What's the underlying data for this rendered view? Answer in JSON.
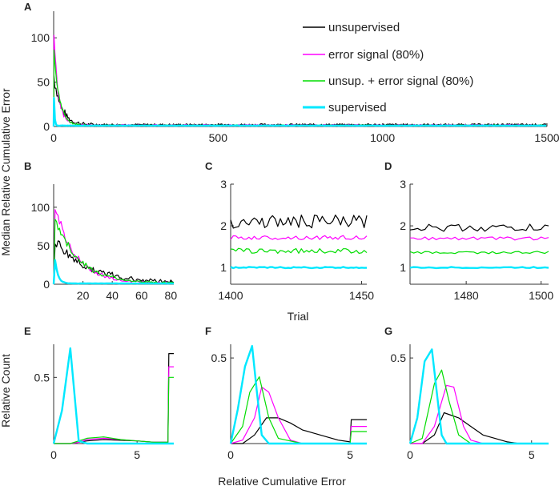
{
  "colors": {
    "unsupervised": "#000000",
    "error": "#ff00ff",
    "combo": "#00dd00",
    "supervised": "#00e8ff"
  },
  "labels": {
    "shared_ylabel": "Median Relative Cumulative Error",
    "trial_label": "Trial",
    "relcount_label": "Relative Count",
    "relcum_label": "Relative Cumulative Error"
  },
  "legend": [
    "unsupervised",
    "error signal (80%)",
    "unsup. + error signal (80%)",
    "supervised"
  ],
  "chart_data": [
    {
      "id": "A",
      "type": "line",
      "xlim": [
        0,
        1500
      ],
      "ylim": [
        0,
        130
      ],
      "xticks": [
        "0",
        "500",
        "1000",
        "1500"
      ],
      "yticks": [
        "0",
        "50",
        "100"
      ],
      "series": [
        {
          "name": "unsupervised",
          "peak": 55,
          "tau": 22,
          "floor": 2,
          "noise": 2.2
        },
        {
          "name": "error signal (80%)",
          "peak": 98,
          "tau": 14,
          "floor": 1.5,
          "noise": 1.5
        },
        {
          "name": "unsup. + error signal (80%)",
          "peak": 85,
          "tau": 16,
          "floor": 1.3,
          "noise": 1.2
        },
        {
          "name": "supervised",
          "peak": 30,
          "tau": 2,
          "floor": 1,
          "noise": 0.3
        }
      ]
    },
    {
      "id": "B",
      "type": "line",
      "xlim": [
        0,
        82
      ],
      "ylim": [
        0,
        130
      ],
      "xticks": [
        "20",
        "40",
        "60",
        "80"
      ],
      "yticks": [
        "0",
        "50",
        "100"
      ],
      "series": [
        {
          "name": "unsupervised",
          "peak": 55,
          "tau": 22,
          "floor": 2,
          "noise": 2.2
        },
        {
          "name": "error signal (80%)",
          "peak": 98,
          "tau": 14,
          "floor": 1.5,
          "noise": 1.5
        },
        {
          "name": "unsup. + error signal (80%)",
          "peak": 85,
          "tau": 16,
          "floor": 1.3,
          "noise": 1.2
        },
        {
          "name": "supervised",
          "peak": 30,
          "tau": 2,
          "floor": 1,
          "noise": 0.3
        }
      ]
    },
    {
      "id": "C",
      "type": "line",
      "xlim": [
        1400,
        1452
      ],
      "ylim": [
        0.6,
        3.0
      ],
      "xticks": [
        "1400",
        "1450"
      ],
      "yticks": [
        "1",
        "2",
        "3"
      ],
      "series": [
        {
          "name": "unsupervised",
          "level": 2.1,
          "noise": 0.16
        },
        {
          "name": "error signal (80%)",
          "level": 1.72,
          "noise": 0.05
        },
        {
          "name": "unsup. + error signal (80%)",
          "level": 1.4,
          "noise": 0.06
        },
        {
          "name": "supervised",
          "level": 1.0,
          "noise": 0.015
        }
      ]
    },
    {
      "id": "D",
      "type": "line",
      "xlim": [
        1465,
        1502
      ],
      "ylim": [
        0.6,
        3.0
      ],
      "xticks": [
        "1480",
        "1500"
      ],
      "yticks": [
        "1",
        "2",
        "3"
      ],
      "series": [
        {
          "name": "unsupervised",
          "level": 1.95,
          "noise": 0.09
        },
        {
          "name": "error signal (80%)",
          "level": 1.7,
          "noise": 0.04
        },
        {
          "name": "unsup. + error signal (80%)",
          "level": 1.36,
          "noise": 0.03
        },
        {
          "name": "supervised",
          "level": 1.0,
          "noise": 0.015
        }
      ]
    },
    {
      "id": "E",
      "type": "line",
      "xlim": [
        0,
        7.2
      ],
      "ylim": [
        0,
        0.75
      ],
      "xticks": [
        "0",
        "5"
      ],
      "yticks": [
        "0.5"
      ],
      "series": [
        {
          "name": "unsupervised",
          "x": [
            0,
            1,
            1.5,
            2,
            3,
            4,
            5,
            6,
            6.85,
            6.9,
            7.2
          ],
          "y": [
            0,
            0,
            0.01,
            0.02,
            0.03,
            0.025,
            0.02,
            0.01,
            0.01,
            0.68,
            0.68
          ]
        },
        {
          "name": "error signal (80%)",
          "x": [
            0,
            1,
            1.5,
            2,
            3,
            4,
            5,
            6,
            6.85,
            6.9,
            7.2
          ],
          "y": [
            0,
            0,
            0.01,
            0.03,
            0.04,
            0.03,
            0.02,
            0.01,
            0.01,
            0.58,
            0.58
          ]
        },
        {
          "name": "unsup. + error signal (80%)",
          "x": [
            0,
            1,
            1.5,
            2,
            3,
            4,
            5,
            6,
            6.85,
            6.9,
            7.2
          ],
          "y": [
            0,
            0,
            0.02,
            0.04,
            0.05,
            0.03,
            0.02,
            0.01,
            0.01,
            0.5,
            0.5
          ]
        },
        {
          "name": "supervised",
          "x": [
            0,
            0.5,
            1,
            1.5,
            2,
            3,
            5,
            7.2
          ],
          "y": [
            0,
            0.25,
            0.72,
            0.02,
            0,
            0,
            0,
            0
          ]
        }
      ]
    },
    {
      "id": "F",
      "type": "line",
      "xlim": [
        0,
        5.7
      ],
      "ylim": [
        0,
        0.58
      ],
      "xticks": [
        "0",
        "5"
      ],
      "yticks": [
        "0.5"
      ],
      "series": [
        {
          "name": "unsupervised",
          "x": [
            0,
            0.5,
            1,
            1.5,
            2,
            2.5,
            3,
            3.5,
            4,
            4.5,
            5,
            5.05,
            5.7
          ],
          "y": [
            0,
            0,
            0.05,
            0.15,
            0.15,
            0.12,
            0.08,
            0.06,
            0.04,
            0.02,
            0.01,
            0.14,
            0.14
          ]
        },
        {
          "name": "error signal (80%)",
          "x": [
            0,
            0.5,
            1,
            1.3,
            1.6,
            2,
            2.5,
            3,
            5,
            5.05,
            5.7
          ],
          "y": [
            0,
            0.02,
            0.15,
            0.33,
            0.3,
            0.15,
            0.02,
            0,
            0,
            0.1,
            0.1
          ]
        },
        {
          "name": "unsup. + error signal (80%)",
          "x": [
            0,
            0.5,
            0.8,
            1.2,
            1.6,
            2,
            3,
            5,
            5.05,
            5.7
          ],
          "y": [
            0,
            0.1,
            0.3,
            0.39,
            0.15,
            0.03,
            0,
            0,
            0.07,
            0.07
          ]
        },
        {
          "name": "supervised",
          "x": [
            0,
            0.3,
            0.6,
            0.9,
            1.1,
            1.3,
            1.6,
            5.7
          ],
          "y": [
            0,
            0.2,
            0.45,
            0.57,
            0.3,
            0.05,
            0,
            0
          ]
        }
      ]
    },
    {
      "id": "G",
      "type": "line",
      "xlim": [
        0,
        5.7
      ],
      "ylim": [
        0,
        0.58
      ],
      "xticks": [
        "0",
        "5"
      ],
      "yticks": [
        "0.5"
      ],
      "series": [
        {
          "name": "unsupervised",
          "x": [
            0,
            0.5,
            1,
            1.4,
            2,
            2.5,
            3,
            3.5,
            4,
            4.5,
            5.7
          ],
          "y": [
            0,
            0,
            0.05,
            0.18,
            0.15,
            0.1,
            0.05,
            0.03,
            0.01,
            0,
            0
          ]
        },
        {
          "name": "error signal (80%)",
          "x": [
            0,
            0.5,
            1,
            1.5,
            1.8,
            2.2,
            2.5,
            3,
            5.7
          ],
          "y": [
            0,
            0,
            0.1,
            0.34,
            0.33,
            0.1,
            0.02,
            0,
            0
          ]
        },
        {
          "name": "unsup. + error signal (80%)",
          "x": [
            0,
            0.5,
            1,
            1.3,
            1.6,
            2,
            2.5,
            5.7
          ],
          "y": [
            0,
            0.03,
            0.35,
            0.43,
            0.25,
            0.05,
            0,
            0
          ]
        },
        {
          "name": "supervised",
          "x": [
            0,
            0.3,
            0.6,
            0.9,
            1.1,
            1.3,
            1.5,
            5.7
          ],
          "y": [
            0,
            0.15,
            0.48,
            0.55,
            0.3,
            0.05,
            0,
            0
          ]
        }
      ]
    }
  ]
}
